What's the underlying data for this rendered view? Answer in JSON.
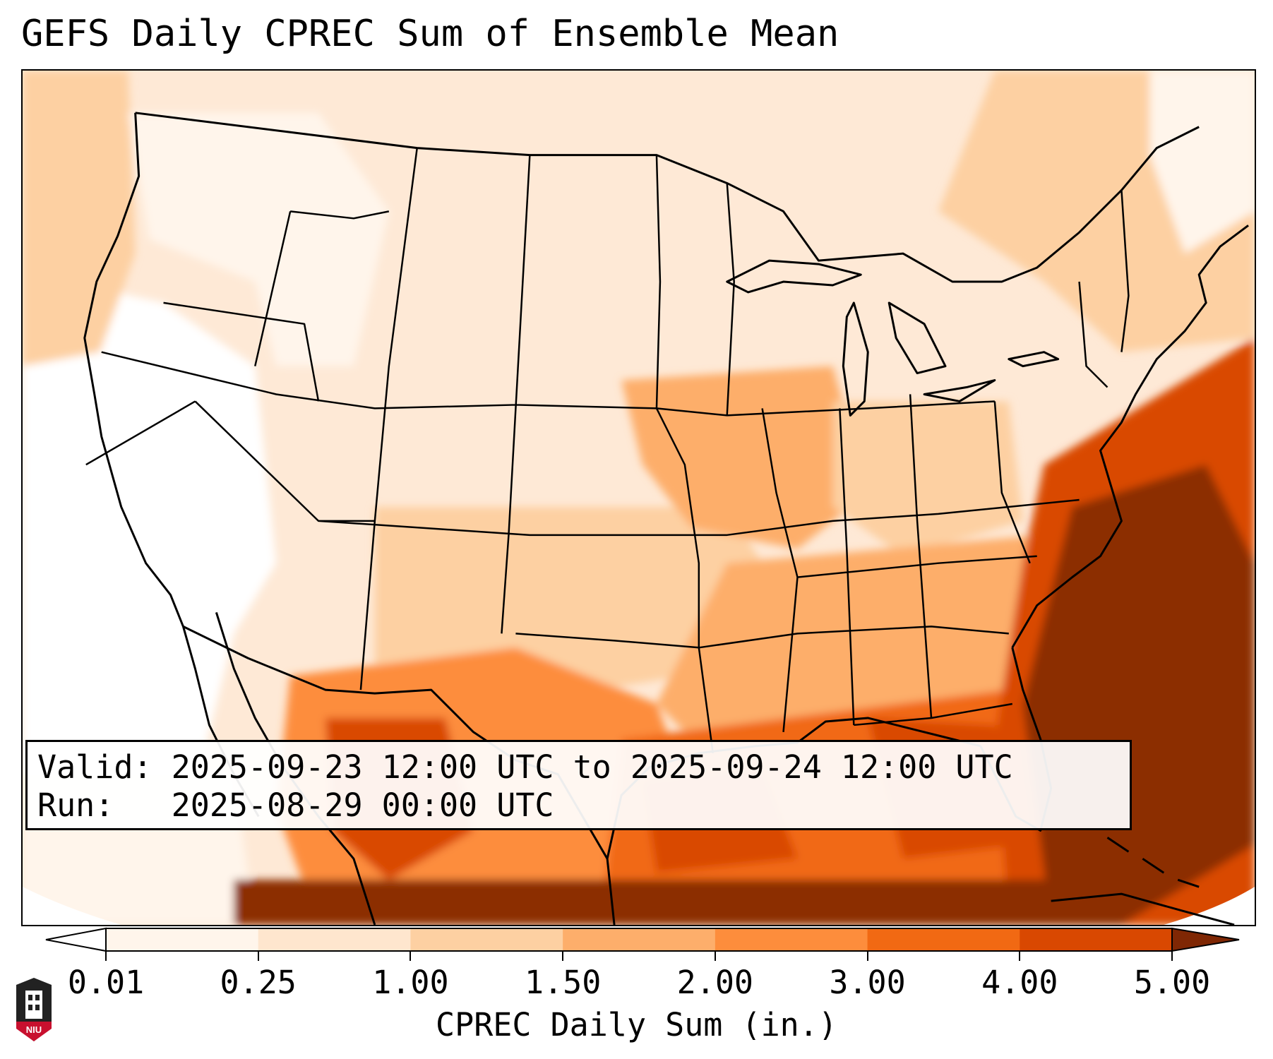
{
  "title": "GEFS Daily CPREC Sum of Ensemble Mean",
  "info": {
    "valid_line": "Valid: 2025-09-23 12:00 UTC to 2025-09-24 12:00 UTC",
    "run_line": "Run:   2025-08-29 00:00 UTC"
  },
  "colorbar": {
    "label": "CPREC Daily Sum (in.)",
    "ticks": [
      "0.01",
      "0.25",
      "1.00",
      "1.50",
      "2.00",
      "3.00",
      "4.00",
      "5.00"
    ],
    "colors": [
      "#fff5eb",
      "#fee6ce",
      "#fdd0a2",
      "#fdae6b",
      "#fd8d3c",
      "#f16913",
      "#d94801",
      "#8c2d04"
    ],
    "under_color": "#ffffff",
    "over_color": "#7f2704"
  },
  "logo": {
    "text": "NIU",
    "accent": "#c8102e"
  }
}
